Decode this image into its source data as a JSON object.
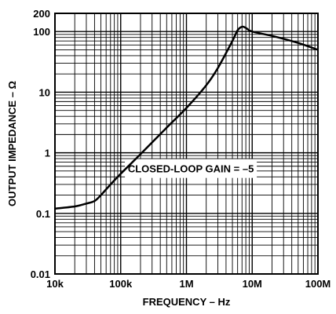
{
  "chart_data": {
    "type": "line",
    "xlabel": "FREQUENCY – Hz",
    "ylabel": "OUTPUT IMPEDANCE – Ω",
    "x_scale": "log",
    "y_scale": "log",
    "xlim": [
      10000,
      100000000
    ],
    "ylim": [
      0.01,
      200
    ],
    "x_ticks": [
      {
        "value": 10000,
        "label": "10k"
      },
      {
        "value": 100000,
        "label": "100k"
      },
      {
        "value": 1000000,
        "label": "1M"
      },
      {
        "value": 10000000,
        "label": "10M"
      },
      {
        "value": 100000000,
        "label": "100M"
      }
    ],
    "y_ticks": [
      {
        "value": 0.01,
        "label": "0.01"
      },
      {
        "value": 0.1,
        "label": "0.1"
      },
      {
        "value": 1,
        "label": "1"
      },
      {
        "value": 10,
        "label": "10"
      },
      {
        "value": 100,
        "label": "100"
      },
      {
        "value": 200,
        "label": "200"
      }
    ],
    "grid": true,
    "annotation": "CLOSED-LOOP GAIN = –5",
    "series": [
      {
        "x": [
          10000,
          20000,
          30000,
          40000,
          50000,
          70000,
          100000,
          200000,
          500000,
          1000000,
          2000000,
          3000000,
          5000000,
          6000000,
          7000000,
          8000000,
          10000000,
          20000000,
          50000000,
          100000000
        ],
        "y": [
          0.12,
          0.13,
          0.145,
          0.16,
          0.2,
          0.3,
          0.45,
          0.95,
          2.6,
          5.5,
          13,
          25,
          70,
          105,
          120,
          115,
          100,
          85,
          65,
          50
        ]
      }
    ]
  }
}
